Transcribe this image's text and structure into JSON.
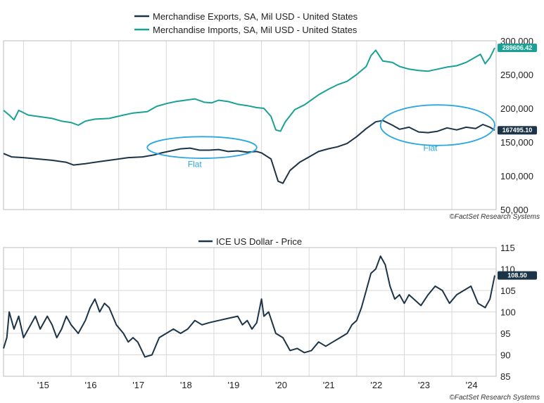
{
  "chart_data": [
    {
      "type": "line",
      "title": "",
      "xlabel": "",
      "ylabel": "",
      "ylim": [
        50000,
        300000
      ],
      "yticks": [
        "300,000",
        "250,000",
        "200,000",
        "150,000",
        "100,000",
        "50,000"
      ],
      "series": [
        {
          "name": "Merchandise Exports, SA, Mil USD - United States",
          "color": "#1c3448",
          "last_label": "167495.10",
          "points": [
            [
              2014.58,
              133000
            ],
            [
              2014.75,
              128000
            ],
            [
              2015.0,
              127000
            ],
            [
              2015.3,
              125000
            ],
            [
              2015.6,
              123000
            ],
            [
              2015.9,
              120000
            ],
            [
              2016.05,
              116000
            ],
            [
              2016.3,
              118000
            ],
            [
              2016.6,
              121000
            ],
            [
              2016.9,
              124000
            ],
            [
              2017.2,
              127000
            ],
            [
              2017.5,
              128000
            ],
            [
              2017.75,
              131000
            ],
            [
              2017.9,
              134000
            ],
            [
              2018.1,
              137000
            ],
            [
              2018.3,
              140000
            ],
            [
              2018.5,
              141000
            ],
            [
              2018.7,
              138000
            ],
            [
              2018.9,
              138000
            ],
            [
              2019.1,
              139000
            ],
            [
              2019.3,
              136000
            ],
            [
              2019.5,
              137000
            ],
            [
              2019.7,
              135000
            ],
            [
              2019.9,
              136000
            ],
            [
              2020.0,
              134000
            ],
            [
              2020.2,
              125000
            ],
            [
              2020.35,
              92000
            ],
            [
              2020.45,
              89000
            ],
            [
              2020.6,
              108000
            ],
            [
              2020.8,
              120000
            ],
            [
              2021.0,
              128000
            ],
            [
              2021.2,
              136000
            ],
            [
              2021.4,
              140000
            ],
            [
              2021.6,
              143000
            ],
            [
              2021.8,
              148000
            ],
            [
              2022.0,
              158000
            ],
            [
              2022.2,
              170000
            ],
            [
              2022.4,
              180000
            ],
            [
              2022.55,
              182000
            ],
            [
              2022.75,
              175000
            ],
            [
              2022.9,
              169000
            ],
            [
              2023.1,
              172000
            ],
            [
              2023.3,
              165000
            ],
            [
              2023.5,
              164000
            ],
            [
              2023.7,
              166000
            ],
            [
              2023.9,
              171000
            ],
            [
              2024.1,
              168000
            ],
            [
              2024.3,
              172000
            ],
            [
              2024.5,
              170000
            ],
            [
              2024.65,
              176000
            ],
            [
              2024.8,
              172000
            ],
            [
              2024.9,
              167495
            ]
          ]
        },
        {
          "name": "Merchandise Imports, SA, Mil USD - United States",
          "color": "#1aa196",
          "last_label": "289606.42",
          "points": [
            [
              2014.58,
              197000
            ],
            [
              2014.7,
              190000
            ],
            [
              2014.8,
              183000
            ],
            [
              2014.9,
              197000
            ],
            [
              2015.1,
              190000
            ],
            [
              2015.3,
              188000
            ],
            [
              2015.6,
              185000
            ],
            [
              2015.8,
              181000
            ],
            [
              2016.0,
              179000
            ],
            [
              2016.15,
              175000
            ],
            [
              2016.3,
              181000
            ],
            [
              2016.5,
              184000
            ],
            [
              2016.8,
              185000
            ],
            [
              2017.1,
              190000
            ],
            [
              2017.3,
              193000
            ],
            [
              2017.6,
              195000
            ],
            [
              2017.8,
              203000
            ],
            [
              2018.0,
              207000
            ],
            [
              2018.2,
              210000
            ],
            [
              2018.4,
              212000
            ],
            [
              2018.6,
              214000
            ],
            [
              2018.8,
              209000
            ],
            [
              2018.95,
              208000
            ],
            [
              2019.1,
              212000
            ],
            [
              2019.3,
              210000
            ],
            [
              2019.5,
              206000
            ],
            [
              2019.7,
              204000
            ],
            [
              2019.9,
              201000
            ],
            [
              2020.05,
              200000
            ],
            [
              2020.2,
              188000
            ],
            [
              2020.3,
              168000
            ],
            [
              2020.4,
              166000
            ],
            [
              2020.5,
              180000
            ],
            [
              2020.7,
              198000
            ],
            [
              2020.9,
              205000
            ],
            [
              2021.0,
              210000
            ],
            [
              2021.2,
              220000
            ],
            [
              2021.4,
              228000
            ],
            [
              2021.6,
              235000
            ],
            [
              2021.8,
              240000
            ],
            [
              2022.0,
              250000
            ],
            [
              2022.2,
              262000
            ],
            [
              2022.3,
              278000
            ],
            [
              2022.4,
              286000
            ],
            [
              2022.55,
              270000
            ],
            [
              2022.75,
              268000
            ],
            [
              2022.9,
              262000
            ],
            [
              2023.1,
              258000
            ],
            [
              2023.3,
              256000
            ],
            [
              2023.5,
              255000
            ],
            [
              2023.7,
              258000
            ],
            [
              2023.9,
              261000
            ],
            [
              2024.1,
              263000
            ],
            [
              2024.3,
              268000
            ],
            [
              2024.5,
              276000
            ],
            [
              2024.6,
              280000
            ],
            [
              2024.7,
              266000
            ],
            [
              2024.8,
              275000
            ],
            [
              2024.9,
              289606
            ]
          ]
        }
      ],
      "annotations": [
        {
          "label": "Flat",
          "center": [
            2018.75,
            142000
          ],
          "radius": [
            1.15,
            16000
          ],
          "text_at": [
            2018.45,
            113000
          ]
        },
        {
          "label": "Flat",
          "center": [
            2023.7,
            175000
          ],
          "radius": [
            1.2,
            30000
          ],
          "text_at": [
            2023.4,
            137000
          ]
        }
      ],
      "credit": "©FactSet Research Systems"
    },
    {
      "type": "line",
      "title": "",
      "xlabel": "",
      "ylabel": "",
      "ylim": [
        85,
        115
      ],
      "yticks": [
        "115",
        "110",
        "105",
        "100",
        "95",
        "90",
        "85"
      ],
      "xticks": [
        "'15",
        "'16",
        "'17",
        "'18",
        "'19",
        "'20",
        "'21",
        "'22",
        "'23",
        "'24"
      ],
      "series": [
        {
          "name": "ICE US Dollar - Price",
          "color": "#1c3448",
          "last_label": "108.50",
          "points": [
            [
              2014.58,
              91.5
            ],
            [
              2014.65,
              94
            ],
            [
              2014.7,
              100
            ],
            [
              2014.8,
              96
            ],
            [
              2014.9,
              99
            ],
            [
              2015.0,
              94
            ],
            [
              2015.15,
              97
            ],
            [
              2015.25,
              99
            ],
            [
              2015.35,
              96
            ],
            [
              2015.5,
              99
            ],
            [
              2015.6,
              97
            ],
            [
              2015.7,
              94
            ],
            [
              2015.8,
              96
            ],
            [
              2015.9,
              99
            ],
            [
              2016.0,
              97
            ],
            [
              2016.15,
              95
            ],
            [
              2016.3,
              98
            ],
            [
              2016.4,
              101
            ],
            [
              2016.5,
              103
            ],
            [
              2016.6,
              100
            ],
            [
              2016.7,
              102
            ],
            [
              2016.8,
              101
            ],
            [
              2016.95,
              97
            ],
            [
              2017.1,
              95
            ],
            [
              2017.2,
              93
            ],
            [
              2017.3,
              94
            ],
            [
              2017.4,
              93
            ],
            [
              2017.55,
              89.5
            ],
            [
              2017.7,
              90
            ],
            [
              2017.85,
              94
            ],
            [
              2018.0,
              95
            ],
            [
              2018.15,
              96
            ],
            [
              2018.3,
              95
            ],
            [
              2018.45,
              96
            ],
            [
              2018.6,
              98
            ],
            [
              2018.75,
              97
            ],
            [
              2018.9,
              97.5
            ],
            [
              2019.1,
              98
            ],
            [
              2019.3,
              98.5
            ],
            [
              2019.5,
              99
            ],
            [
              2019.6,
              97
            ],
            [
              2019.7,
              98
            ],
            [
              2019.8,
              96
            ],
            [
              2019.9,
              97.5
            ],
            [
              2020.0,
              103
            ],
            [
              2020.05,
              99
            ],
            [
              2020.15,
              100
            ],
            [
              2020.3,
              95
            ],
            [
              2020.45,
              94
            ],
            [
              2020.6,
              91
            ],
            [
              2020.75,
              91.5
            ],
            [
              2020.9,
              90.5
            ],
            [
              2021.05,
              91
            ],
            [
              2021.2,
              93
            ],
            [
              2021.35,
              92
            ],
            [
              2021.5,
              93
            ],
            [
              2021.65,
              94
            ],
            [
              2021.8,
              95
            ],
            [
              2021.9,
              97
            ],
            [
              2022.0,
              98
            ],
            [
              2022.1,
              101
            ],
            [
              2022.2,
              105
            ],
            [
              2022.3,
              109
            ],
            [
              2022.4,
              110
            ],
            [
              2022.5,
              113
            ],
            [
              2022.6,
              111
            ],
            [
              2022.7,
              106
            ],
            [
              2022.8,
              103
            ],
            [
              2022.9,
              104
            ],
            [
              2023.0,
              102
            ],
            [
              2023.1,
              104
            ],
            [
              2023.2,
              103
            ],
            [
              2023.35,
              101.5
            ],
            [
              2023.5,
              104
            ],
            [
              2023.65,
              106
            ],
            [
              2023.8,
              105
            ],
            [
              2023.95,
              102
            ],
            [
              2024.1,
              104
            ],
            [
              2024.25,
              105
            ],
            [
              2024.4,
              106
            ],
            [
              2024.55,
              102
            ],
            [
              2024.7,
              101
            ],
            [
              2024.8,
              103
            ],
            [
              2024.9,
              108.5
            ]
          ]
        }
      ],
      "credit": "©FactSet Research Systems"
    }
  ]
}
